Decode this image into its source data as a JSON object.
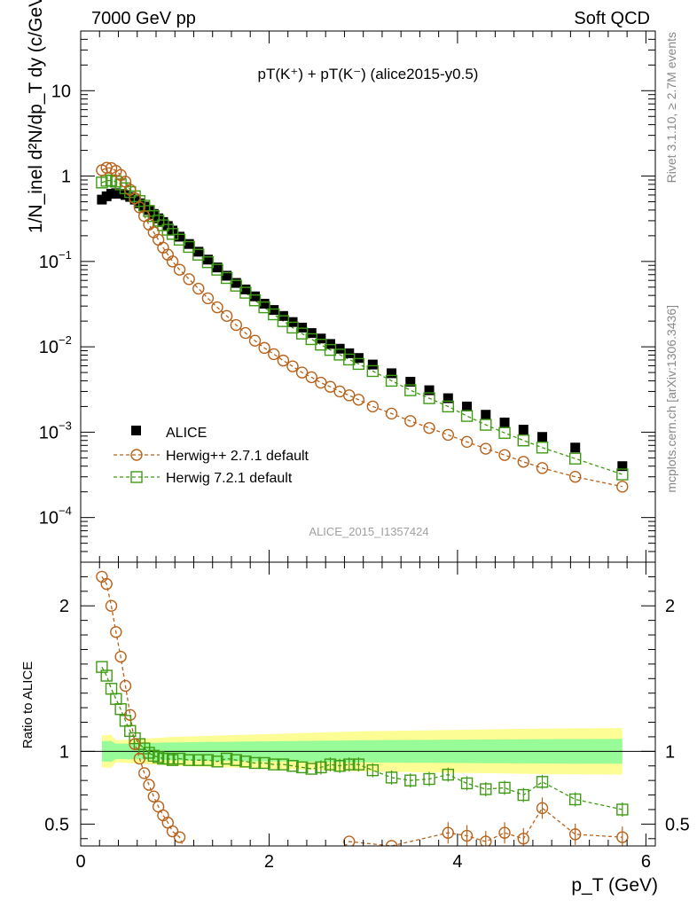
{
  "header": {
    "left": "7000 GeV pp",
    "right": "Soft QCD"
  },
  "side": {
    "rivet": "Rivet 3.1.10, ≥ 2.7M events",
    "mcplots": "mcplots.cern.ch [arXiv:1306.3436]"
  },
  "colors": {
    "alice": "#000000",
    "herwigpp": "#b8621b",
    "herwig7": "#3f9a14",
    "band_outer": "#fdfd96",
    "band_inner": "#97fb97"
  },
  "chart_data": {
    "type": "scatter",
    "title": "pT(K⁺) + pT(K⁻) (alice2015-y0.5)",
    "watermark": "ALICE_2015_I1357424",
    "xlabel": "p_T (GeV)",
    "ylabel_top": "1/N_inel d²N/dp_T dy (c/GeV)",
    "ylabel_ratio": "Ratio to ALICE",
    "xlim": [
      0,
      6.1
    ],
    "ylim_top": [
      3e-05,
      50
    ],
    "ylim_ratio": [
      0.35,
      2.3
    ],
    "yscale_top": "log",
    "xticks": [
      0,
      2,
      4,
      6
    ],
    "yticks_top": [
      "10^-4",
      "10^-3",
      "10^-2",
      "10^-1",
      "1",
      "10"
    ],
    "yticks_ratio": [
      "0.5",
      "1",
      "2"
    ],
    "legend": [
      "ALICE",
      "Herwig++ 2.7.1 default",
      "Herwig 7.2.1 default"
    ],
    "legend_position": "lower-left",
    "x": [
      0.225,
      0.275,
      0.325,
      0.375,
      0.425,
      0.475,
      0.525,
      0.575,
      0.625,
      0.675,
      0.725,
      0.775,
      0.825,
      0.875,
      0.925,
      0.975,
      1.05,
      1.15,
      1.25,
      1.35,
      1.45,
      1.55,
      1.65,
      1.75,
      1.85,
      1.95,
      2.05,
      2.15,
      2.25,
      2.35,
      2.45,
      2.55,
      2.65,
      2.75,
      2.85,
      2.95,
      3.1,
      3.3,
      3.5,
      3.7,
      3.9,
      4.1,
      4.3,
      4.5,
      4.7,
      4.9,
      5.25,
      5.75
    ],
    "series": [
      {
        "name": "ALICE",
        "values": [
          0.53,
          0.58,
          0.62,
          0.63,
          0.62,
          0.6,
          0.57,
          0.53,
          0.48,
          0.44,
          0.4,
          0.36,
          0.32,
          0.29,
          0.26,
          0.23,
          0.195,
          0.16,
          0.13,
          0.105,
          0.085,
          0.068,
          0.056,
          0.047,
          0.039,
          0.032,
          0.027,
          0.023,
          0.0195,
          0.0168,
          0.0145,
          0.0125,
          0.0108,
          0.0095,
          0.0084,
          0.0074,
          0.0062,
          0.0049,
          0.0039,
          0.0031,
          0.0025,
          0.002,
          0.0016,
          0.0013,
          0.00107,
          0.00088,
          0.00066,
          0.0004
        ]
      },
      {
        "name": "Herwig++ 2.7.1 default",
        "values": [
          1.17,
          1.25,
          1.24,
          1.15,
          1.03,
          0.86,
          0.69,
          0.55,
          0.43,
          0.34,
          0.27,
          0.22,
          0.18,
          0.145,
          0.12,
          0.1,
          0.08,
          0.062,
          0.048,
          0.037,
          0.029,
          0.023,
          0.018,
          0.0145,
          0.0118,
          0.0097,
          0.0082,
          0.0069,
          0.0059,
          0.005,
          0.0044,
          0.0038,
          0.0034,
          0.003,
          0.0027,
          0.0024,
          0.002,
          0.00165,
          0.00135,
          0.00112,
          0.00093,
          0.00077,
          0.00064,
          0.00054,
          0.00045,
          0.00038,
          0.0003,
          0.00023
        ]
      },
      {
        "name": "Herwig 7.2.1 default",
        "values": [
          0.84,
          0.88,
          0.89,
          0.86,
          0.8,
          0.72,
          0.65,
          0.58,
          0.51,
          0.45,
          0.39,
          0.34,
          0.3,
          0.265,
          0.235,
          0.21,
          0.18,
          0.148,
          0.12,
          0.098,
          0.08,
          0.064,
          0.052,
          0.043,
          0.035,
          0.029,
          0.024,
          0.02,
          0.0168,
          0.0143,
          0.0123,
          0.0106,
          0.0092,
          0.0081,
          0.0071,
          0.0063,
          0.0052,
          0.004,
          0.0031,
          0.0025,
          0.002,
          0.00155,
          0.00122,
          0.00098,
          0.0008,
          0.00066,
          0.00049,
          0.00032
        ]
      }
    ],
    "ratio": {
      "herwigpp": [
        2.2,
        2.15,
        2.0,
        1.82,
        1.65,
        1.45,
        1.25,
        1.05,
        0.95,
        0.85,
        0.77,
        0.69,
        0.62,
        0.56,
        0.51,
        0.45,
        0.41
      ],
      "herwig7": [
        1.58,
        1.52,
        1.43,
        1.36,
        1.29,
        1.21,
        1.14,
        1.09,
        1.05,
        1.02,
        0.99,
        0.97,
        0.96,
        0.95,
        0.95,
        0.94,
        0.95,
        0.94,
        0.94,
        0.94,
        0.93,
        0.95,
        0.94,
        0.93,
        0.92,
        0.92,
        0.91,
        0.91,
        0.9,
        0.89,
        0.88,
        0.89,
        0.91,
        0.9,
        0.91,
        0.91,
        0.87,
        0.82,
        0.8,
        0.81,
        0.84,
        0.78,
        0.74,
        0.75,
        0.7,
        0.79,
        0.67,
        0.6
      ],
      "herwigpp_tail_x": [
        2.85,
        3.3,
        3.9,
        4.1,
        4.3,
        4.5,
        4.7,
        4.9,
        5.25,
        5.75
      ],
      "herwigpp_tail": [
        0.38,
        0.35,
        0.44,
        0.42,
        0.38,
        0.44,
        0.4,
        0.61,
        0.43,
        0.41
      ]
    }
  }
}
